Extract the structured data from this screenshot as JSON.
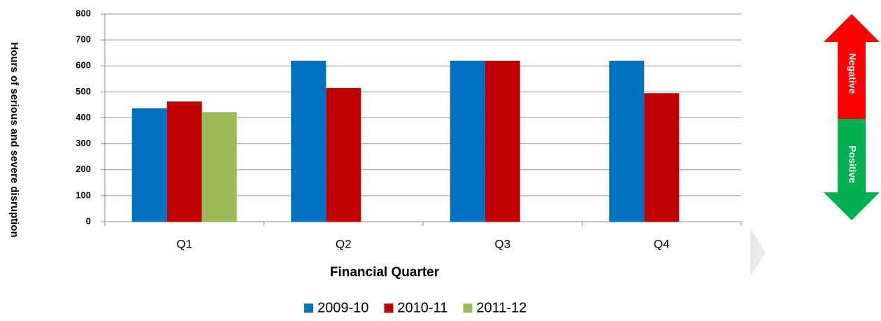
{
  "chart_data": {
    "type": "bar",
    "y_label": "Hours of serious and severe disruption",
    "x_label": "Financial Quarter",
    "categories": [
      "Q1",
      "Q2",
      "Q3",
      "Q4"
    ],
    "series": [
      {
        "name": "2009-10",
        "color": "#0070c0",
        "values": [
          437,
          620,
          620,
          620
        ]
      },
      {
        "name": "2010-11",
        "color": "#c00000",
        "values": [
          463,
          515,
          620,
          495
        ]
      },
      {
        "name": "2011-12",
        "color": "#9bbb59",
        "values": [
          422,
          null,
          null,
          null
        ]
      }
    ],
    "ylim": [
      0,
      800
    ],
    "yticks": [
      0,
      100,
      200,
      300,
      400,
      500,
      600,
      700,
      800
    ],
    "grid": true,
    "legend": "bottom",
    "indicator": {
      "top": "Negative",
      "bottom": "Positive"
    }
  }
}
